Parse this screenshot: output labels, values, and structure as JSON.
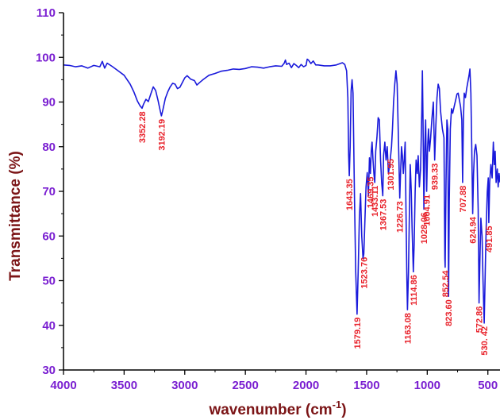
{
  "chart_data": {
    "type": "line",
    "title": "",
    "xlabel": "wavenumber (cm",
    "xlabel_sup": "-1",
    "xlabel_close": ")",
    "ylabel": "Transmittance (%)",
    "xlim": [
      4000,
      400
    ],
    "ylim": [
      30,
      110
    ],
    "x_reversed": true,
    "grid": false,
    "x_ticks": [
      4000,
      3500,
      3000,
      2500,
      2000,
      1500,
      1000,
      500
    ],
    "x_tick_labels": [
      "4000",
      "3500",
      "3000",
      "2500",
      "2000",
      "1500",
      "1000",
      "500"
    ],
    "y_ticks": [
      30,
      40,
      50,
      60,
      70,
      80,
      90,
      100,
      110
    ],
    "y_tick_labels": [
      "30",
      "40",
      "50",
      "60",
      "70",
      "80",
      "90",
      "100",
      "110"
    ],
    "colors": {
      "line": "#1a1adb",
      "axis": "#000000",
      "tick_label": "#7a1fd1",
      "axis_title": "#7b1416",
      "peak_label": "#e8222b"
    },
    "series": [
      {
        "points": [
          [
            4000,
            98.3
          ],
          [
            3950,
            98.2
          ],
          [
            3900,
            97.9
          ],
          [
            3850,
            98.1
          ],
          [
            3800,
            97.6
          ],
          [
            3750,
            98.2
          ],
          [
            3700,
            97.9
          ],
          [
            3680,
            99.1
          ],
          [
            3660,
            97.6
          ],
          [
            3640,
            98.7
          ],
          [
            3600,
            98.0
          ],
          [
            3550,
            97.0
          ],
          [
            3500,
            96.0
          ],
          [
            3450,
            94.0
          ],
          [
            3420,
            92.3
          ],
          [
            3390,
            90.2
          ],
          [
            3370,
            89.2
          ],
          [
            3352,
            88.6
          ],
          [
            3340,
            89.5
          ],
          [
            3320,
            90.6
          ],
          [
            3300,
            90.1
          ],
          [
            3280,
            91.8
          ],
          [
            3260,
            93.4
          ],
          [
            3240,
            92.6
          ],
          [
            3220,
            90.3
          ],
          [
            3200,
            87.8
          ],
          [
            3192,
            86.9
          ],
          [
            3180,
            88.3
          ],
          [
            3160,
            90.8
          ],
          [
            3140,
            92.3
          ],
          [
            3120,
            93.4
          ],
          [
            3100,
            94.2
          ],
          [
            3080,
            94.0
          ],
          [
            3060,
            93.0
          ],
          [
            3040,
            93.3
          ],
          [
            3000,
            95.4
          ],
          [
            2980,
            95.9
          ],
          [
            2950,
            95.1
          ],
          [
            2920,
            94.8
          ],
          [
            2900,
            93.8
          ],
          [
            2880,
            94.3
          ],
          [
            2850,
            95.0
          ],
          [
            2820,
            95.6
          ],
          [
            2800,
            96.0
          ],
          [
            2750,
            96.4
          ],
          [
            2700,
            96.9
          ],
          [
            2650,
            97.1
          ],
          [
            2600,
            97.4
          ],
          [
            2550,
            97.3
          ],
          [
            2500,
            97.5
          ],
          [
            2450,
            97.9
          ],
          [
            2400,
            97.8
          ],
          [
            2350,
            97.6
          ],
          [
            2300,
            97.9
          ],
          [
            2250,
            98.1
          ],
          [
            2200,
            98.0
          ],
          [
            2180,
            98.7
          ],
          [
            2170,
            99.4
          ],
          [
            2160,
            98.4
          ],
          [
            2140,
            98.7
          ],
          [
            2120,
            97.7
          ],
          [
            2100,
            98.6
          ],
          [
            2080,
            98.2
          ],
          [
            2060,
            97.7
          ],
          [
            2040,
            98.4
          ],
          [
            2020,
            97.9
          ],
          [
            2000,
            98.2
          ],
          [
            1990,
            99.6
          ],
          [
            1980,
            99.4
          ],
          [
            1960,
            98.6
          ],
          [
            1940,
            99.2
          ],
          [
            1920,
            98.3
          ],
          [
            1900,
            98.3
          ],
          [
            1850,
            98.1
          ],
          [
            1800,
            98.1
          ],
          [
            1750,
            98.3
          ],
          [
            1720,
            98.6
          ],
          [
            1700,
            98.8
          ],
          [
            1680,
            98.4
          ],
          [
            1665,
            97.0
          ],
          [
            1655,
            91.0
          ],
          [
            1648,
            78.0
          ],
          [
            1643,
            73.5
          ],
          [
            1636,
            80.0
          ],
          [
            1628,
            92.5
          ],
          [
            1620,
            95.0
          ],
          [
            1612,
            92.0
          ],
          [
            1600,
            68.0
          ],
          [
            1590,
            52.0
          ],
          [
            1579,
            42.5
          ],
          [
            1570,
            52.0
          ],
          [
            1560,
            64.0
          ],
          [
            1550,
            69.5
          ],
          [
            1540,
            60.0
          ],
          [
            1530,
            55.0
          ],
          [
            1523,
            56.0
          ],
          [
            1515,
            63.0
          ],
          [
            1505,
            71.0
          ],
          [
            1495,
            74.2
          ],
          [
            1485,
            69.0
          ],
          [
            1477,
            77.5
          ],
          [
            1469,
            74.0
          ],
          [
            1462,
            79.0
          ],
          [
            1455,
            81.0
          ],
          [
            1447,
            77.0
          ],
          [
            1440,
            74.0
          ],
          [
            1433,
            72.0
          ],
          [
            1425,
            79.0
          ],
          [
            1415,
            82.0
          ],
          [
            1405,
            86.5
          ],
          [
            1395,
            86.0
          ],
          [
            1385,
            77.0
          ],
          [
            1376,
            72.0
          ],
          [
            1367,
            69.0
          ],
          [
            1360,
            78.0
          ],
          [
            1350,
            81.0
          ],
          [
            1340,
            77.0
          ],
          [
            1330,
            80.0
          ],
          [
            1320,
            74.0
          ],
          [
            1310,
            76.0
          ],
          [
            1302,
            78.0
          ],
          [
            1295,
            80.0
          ],
          [
            1287,
            84.0
          ],
          [
            1278,
            90.0
          ],
          [
            1268,
            94.0
          ],
          [
            1258,
            97.0
          ],
          [
            1248,
            94.0
          ],
          [
            1238,
            82.0
          ],
          [
            1227,
            68.5
          ],
          [
            1220,
            74.0
          ],
          [
            1212,
            80.0
          ],
          [
            1205,
            78.0
          ],
          [
            1197,
            74.0
          ],
          [
            1190,
            77.0
          ],
          [
            1182,
            81.0
          ],
          [
            1175,
            65.0
          ],
          [
            1168,
            50.0
          ],
          [
            1163,
            43.5
          ],
          [
            1155,
            52.0
          ],
          [
            1147,
            66.0
          ],
          [
            1140,
            76.0
          ],
          [
            1132,
            70.0
          ],
          [
            1125,
            62.0
          ],
          [
            1115,
            52.0
          ],
          [
            1108,
            58.0
          ],
          [
            1100,
            70.0
          ],
          [
            1092,
            77.0
          ],
          [
            1083,
            74.0
          ],
          [
            1075,
            78.0
          ],
          [
            1065,
            71.0
          ],
          [
            1055,
            75.0
          ],
          [
            1045,
            88.0
          ],
          [
            1040,
            97.0
          ],
          [
            1035,
            86.0
          ],
          [
            1028,
            66.0
          ],
          [
            1020,
            80.0
          ],
          [
            1013,
            86.0
          ],
          [
            1005,
            70.0
          ],
          [
            997,
            80.0
          ],
          [
            990,
            84.0
          ],
          [
            982,
            79.0
          ],
          [
            972,
            82.0
          ],
          [
            962,
            86.0
          ],
          [
            950,
            90.0
          ],
          [
            939,
            77.0
          ],
          [
            930,
            84.0
          ],
          [
            920,
            91.0
          ],
          [
            910,
            94.0
          ],
          [
            900,
            93.0
          ],
          [
            890,
            88.0
          ],
          [
            875,
            84.0
          ],
          [
            862,
            82.0
          ],
          [
            855,
            55.0
          ],
          [
            852,
            53.0
          ],
          [
            845,
            72.0
          ],
          [
            838,
            86.0
          ],
          [
            830,
            84.0
          ],
          [
            824,
            46.5
          ],
          [
            818,
            68.0
          ],
          [
            810,
            84.0
          ],
          [
            800,
            88.5
          ],
          [
            790,
            87.5
          ],
          [
            778,
            89.0
          ],
          [
            765,
            90.5
          ],
          [
            755,
            91.8
          ],
          [
            745,
            92.0
          ],
          [
            735,
            90.5
          ],
          [
            725,
            89.0
          ],
          [
            715,
            86.0
          ],
          [
            708,
            72.0
          ],
          [
            702,
            86.0
          ],
          [
            695,
            92.0
          ],
          [
            685,
            91.0
          ],
          [
            675,
            93.0
          ],
          [
            665,
            94.5
          ],
          [
            655,
            96.0
          ],
          [
            648,
            97.4
          ],
          [
            640,
            92.0
          ],
          [
            633,
            80.0
          ],
          [
            625,
            65.0
          ],
          [
            618,
            74.0
          ],
          [
            610,
            79.0
          ],
          [
            600,
            80.5
          ],
          [
            590,
            78.0
          ],
          [
            580,
            66.0
          ],
          [
            573,
            45.0
          ],
          [
            566,
            54.0
          ],
          [
            558,
            64.0
          ],
          [
            548,
            60.0
          ],
          [
            540,
            50.0
          ],
          [
            530,
            40.5
          ],
          [
            522,
            52.0
          ],
          [
            514,
            62.0
          ],
          [
            505,
            70.0
          ],
          [
            497,
            73.0
          ],
          [
            492,
            63.0
          ],
          [
            485,
            72.0
          ],
          [
            475,
            76.0
          ],
          [
            465,
            73.0
          ],
          [
            455,
            81.0
          ],
          [
            447,
            76.0
          ],
          [
            440,
            79.0
          ],
          [
            432,
            72.0
          ],
          [
            422,
            75.0
          ],
          [
            415,
            71.0
          ],
          [
            408,
            74.0
          ],
          [
            400,
            72.0
          ]
        ]
      }
    ],
    "annotations": [
      {
        "text": "3352.28",
        "x": 3352,
        "y": 88.6
      },
      {
        "text": "3192.19",
        "x": 3192,
        "y": 86.9
      },
      {
        "text": "1643.35",
        "x": 1643,
        "y": 73.5
      },
      {
        "text": "1579.19",
        "x": 1579,
        "y": 42.5
      },
      {
        "text": "1523.76",
        "x": 1523,
        "y": 56.0
      },
      {
        "text": "1469.35",
        "x": 1469,
        "y": 74.0
      },
      {
        "text": "1433.11",
        "x": 1433,
        "y": 72.0
      },
      {
        "text": "1367.53",
        "x": 1367,
        "y": 69.0
      },
      {
        "text": "1301.95",
        "x": 1302,
        "y": 78.0
      },
      {
        "text": "1226.73",
        "x": 1227,
        "y": 68.5
      },
      {
        "text": "1163.08",
        "x": 1163,
        "y": 43.5
      },
      {
        "text": "1114.86",
        "x": 1115,
        "y": 52.0
      },
      {
        "text": "1028.06",
        "x": 1028,
        "y": 66.0
      },
      {
        "text": "1004.91",
        "x": 1005,
        "y": 70.0
      },
      {
        "text": "939.33",
        "x": 939,
        "y": 77.0
      },
      {
        "text": "852.54",
        "x": 852,
        "y": 53.0
      },
      {
        "text": "823.60",
        "x": 824,
        "y": 46.5
      },
      {
        "text": "707.88",
        "x": 708,
        "y": 72.0
      },
      {
        "text": "624.94",
        "x": 625,
        "y": 65.0
      },
      {
        "text": "572.86",
        "x": 573,
        "y": 45.0
      },
      {
        "text": "530. 42",
        "x": 530,
        "y": 40.5
      },
      {
        "text": "491.85",
        "x": 492,
        "y": 63.0
      }
    ]
  }
}
